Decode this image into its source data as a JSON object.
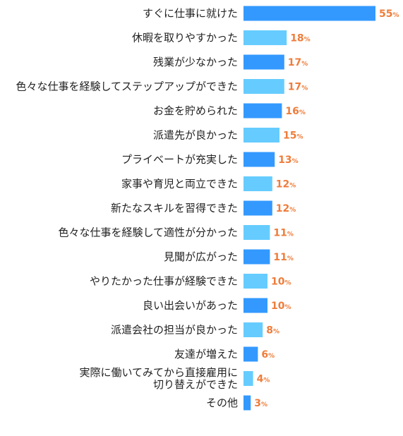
{
  "chart_data": {
    "type": "bar",
    "orientation": "horizontal",
    "categories": [
      [
        "すぐに仕事に就けた"
      ],
      [
        "休暇を取りやすかった"
      ],
      [
        "残業が少なかった"
      ],
      [
        "色々な仕事を経験してステップアップができた"
      ],
      [
        "お金を貯められた"
      ],
      [
        "派遣先が良かった"
      ],
      [
        "プライベートが充実した"
      ],
      [
        "家事や育児と両立できた"
      ],
      [
        "新たなスキルを習得できた"
      ],
      [
        "色々な仕事を経験して適性が分かった"
      ],
      [
        "見聞が広がった"
      ],
      [
        "やりたかった仕事が経験できた"
      ],
      [
        "良い出会いがあった"
      ],
      [
        "派遣会社の担当が良かった"
      ],
      [
        "友達が増えた"
      ],
      [
        "実際に働いてみてから直接雇用に",
        "切り替えができた"
      ],
      [
        "その他"
      ]
    ],
    "values": [
      55,
      18,
      17,
      17,
      16,
      15,
      13,
      12,
      12,
      11,
      11,
      10,
      10,
      8,
      6,
      4,
      3
    ],
    "value_unit": "%",
    "xlim": [
      0,
      55
    ],
    "grid": false,
    "legend": "none",
    "colors": {
      "bar_dark": "#3399ff",
      "bar_light": "#66ccff",
      "value_label": "#ee7d3b",
      "category_label": "#222222"
    }
  }
}
